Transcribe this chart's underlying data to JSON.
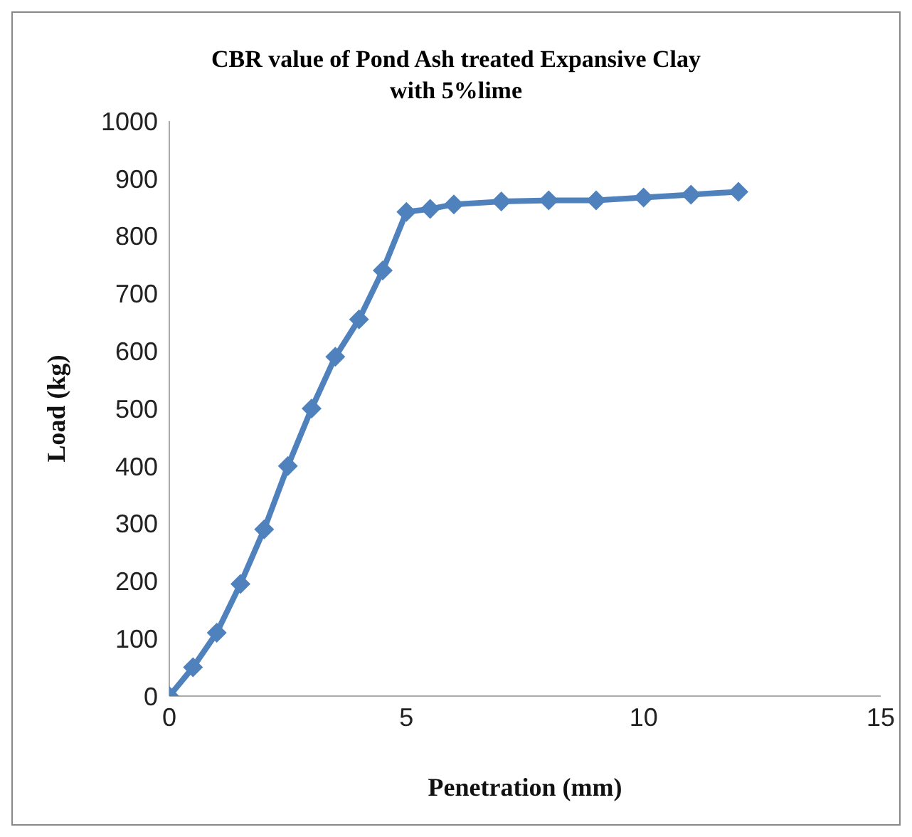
{
  "chart_data": {
    "type": "line",
    "title": "CBR value of Pond Ash treated Expansive Clay\nwith 5%lime",
    "xlabel": "Penetration (mm)",
    "ylabel": "Load (kg)",
    "x": [
      0,
      0.5,
      1,
      1.5,
      2,
      2.5,
      3,
      3.5,
      4,
      4.5,
      5,
      5.5,
      6,
      7,
      8,
      9,
      10,
      11,
      12
    ],
    "series": [
      {
        "color": "#4f81bd",
        "values": [
          0,
          50,
          110,
          195,
          290,
          400,
          500,
          590,
          655,
          740,
          842,
          847,
          855,
          860,
          862,
          862,
          867,
          872,
          877
        ]
      }
    ],
    "xlim": [
      0,
      15
    ],
    "xticks": [
      0,
      5,
      10,
      15
    ],
    "ylim": [
      0,
      1000
    ],
    "yticks": [
      0,
      100,
      200,
      300,
      400,
      500,
      600,
      700,
      800,
      900,
      1000
    ],
    "grid": false,
    "legend": false,
    "marker": "diamond",
    "line_style": "solid"
  }
}
